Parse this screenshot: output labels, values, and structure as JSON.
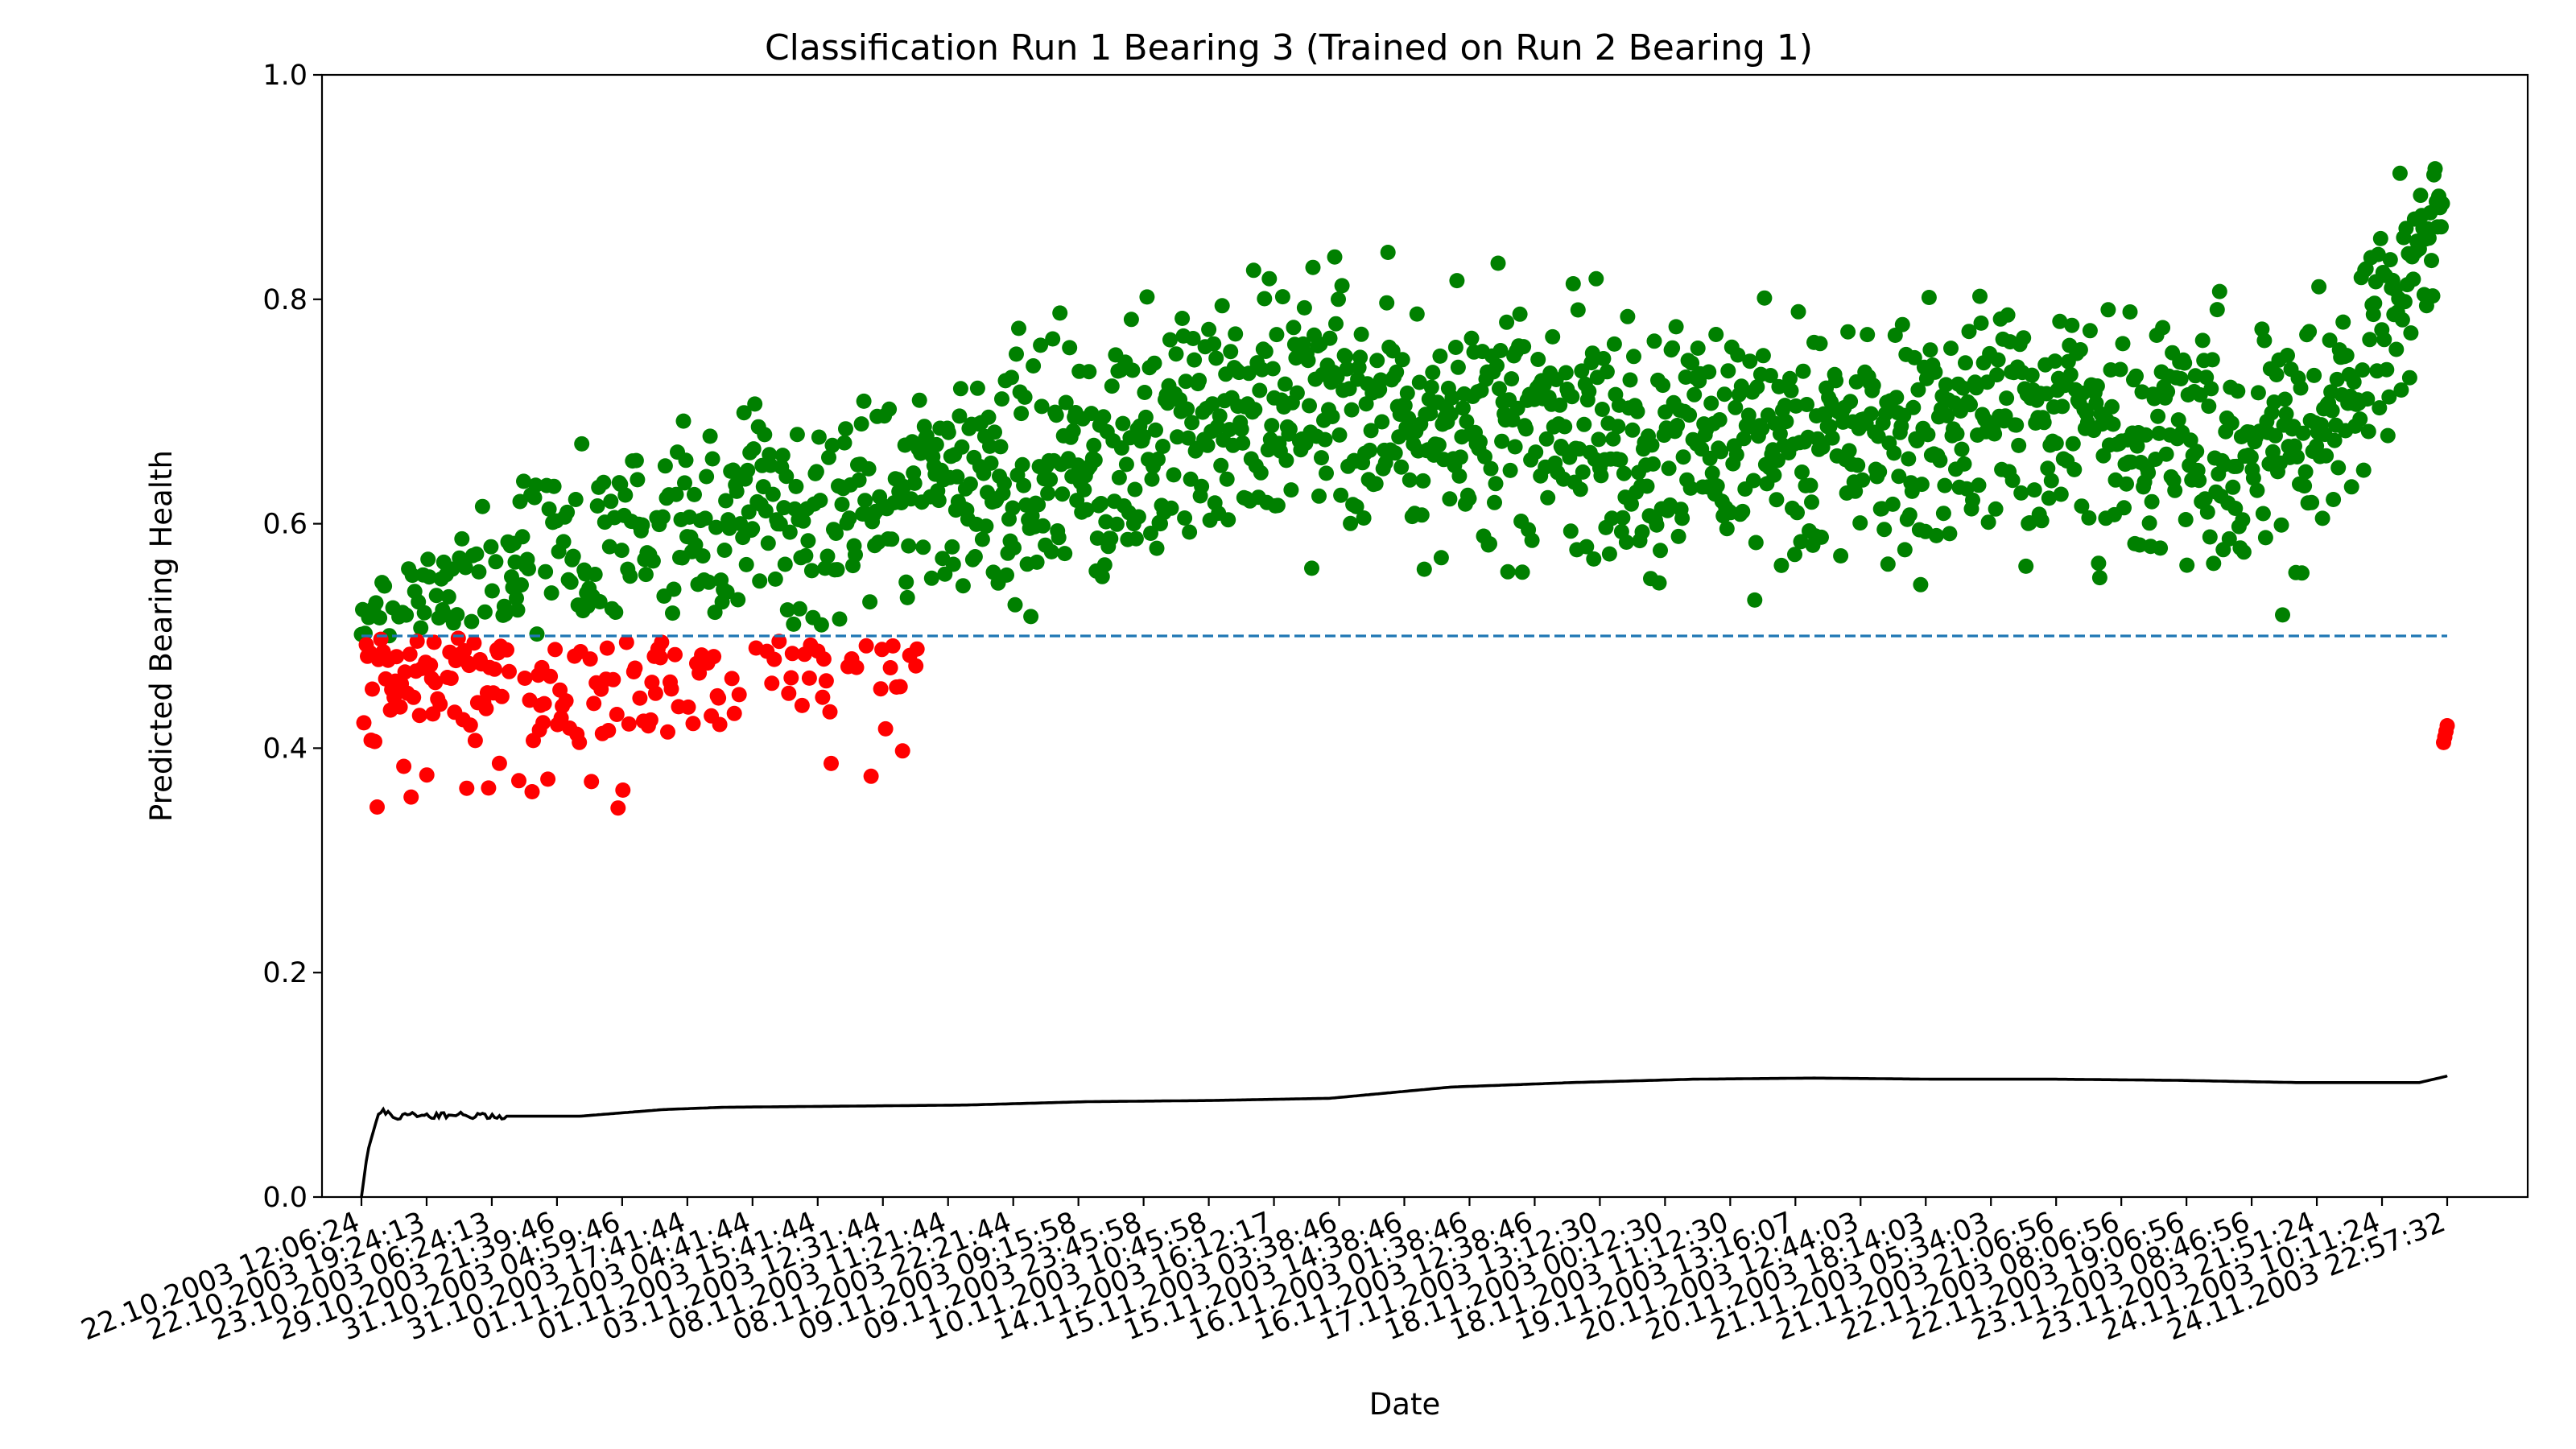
{
  "chart_data": {
    "type": "scatter",
    "title": "Classification Run 1 Bearing 3 (Trained on Run 2 Bearing 1)",
    "xlabel": "Date",
    "ylabel": "Predicted Bearing Health",
    "ylim": [
      0.0,
      1.0
    ],
    "yticks": [
      "0.0",
      "0.2",
      "0.4",
      "0.6",
      "0.8",
      "1.0"
    ],
    "x_tick_labels": [
      "22.10.2003 12:06:24",
      "22.10.2003 19:24:13",
      "23.10.2003 06:24:13",
      "29.10.2003 21:39:46",
      "31.10.2003 04:59:46",
      "31.10.2003 17:41:44",
      "01.11.2003 04:41:44",
      "01.11.2003 15:41:44",
      "03.11.2003 12:31:44",
      "08.11.2003 11:21:44",
      "08.11.2003 22:21:44",
      "09.11.2003 09:15:58",
      "09.11.2003 23:45:58",
      "10.11.2003 10:45:58",
      "14.11.2003 16:12:17",
      "15.11.2003 03:38:46",
      "15.11.2003 14:38:46",
      "16.11.2003 01:38:46",
      "16.11.2003 12:38:46",
      "17.11.2003 13:12:30",
      "18.11.2003 00:12:30",
      "18.11.2003 11:12:30",
      "19.11.2003 13:16:07",
      "20.11.2003 12:44:03",
      "20.11.2003 18:14:03",
      "21.11.2003 05:34:03",
      "21.11.2003 21:06:56",
      "22.11.2003 08:06:56",
      "22.11.2003 19:06:56",
      "23.11.2003 08:46:56",
      "23.11.2003 21:51:24",
      "24.11.2003 10:11:24",
      "24.11.2003 22:57:32"
    ],
    "n_samples": 1724,
    "threshold": {
      "value": 0.5,
      "style": "dashed",
      "color": "#1f77b4"
    },
    "series": [
      {
        "kind": "scatter",
        "color": "#008000",
        "rule": "health >= 0.5",
        "envelope_x": [
          0,
          75,
          120,
          200,
          400,
          600,
          800,
          1000,
          1200,
          1350,
          1480,
          1560,
          1640,
          1700,
          1724
        ],
        "envelope_mean": [
          0.52,
          0.53,
          0.56,
          0.58,
          0.62,
          0.65,
          0.72,
          0.68,
          0.67,
          0.7,
          0.68,
          0.66,
          0.7,
          0.85,
          0.89
        ],
        "envelope_spread": [
          0.04,
          0.06,
          0.07,
          0.08,
          0.09,
          0.1,
          0.1,
          0.1,
          0.1,
          0.1,
          0.1,
          0.1,
          0.1,
          0.07,
          0.05
        ]
      },
      {
        "kind": "scatter",
        "color": "#ff0000",
        "rule": "health < 0.5",
        "notes_x": [
          0,
          300,
          460,
          1700,
          1724
        ],
        "end_cluster": [
          0.405,
          0.41,
          0.415,
          0.42
        ]
      },
      {
        "kind": "line",
        "color": "#000000",
        "x": [
          0,
          5,
          15,
          30,
          60,
          110,
          180,
          250,
          300,
          400,
          500,
          600,
          700,
          800,
          900,
          1000,
          1100,
          1200,
          1300,
          1400,
          1500,
          1600,
          1700,
          1724
        ],
        "y": [
          0.0,
          0.04,
          0.078,
          0.072,
          0.073,
          0.072,
          0.072,
          0.078,
          0.08,
          0.081,
          0.082,
          0.085,
          0.086,
          0.088,
          0.098,
          0.102,
          0.105,
          0.106,
          0.105,
          0.105,
          0.104,
          0.102,
          0.102,
          0.108
        ]
      }
    ],
    "grid": false,
    "legend": "none"
  }
}
